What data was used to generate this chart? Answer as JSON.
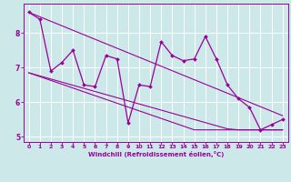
{
  "x_hours": [
    0,
    1,
    2,
    3,
    4,
    5,
    6,
    7,
    8,
    9,
    10,
    11,
    12,
    13,
    14,
    15,
    16,
    17,
    18,
    19,
    20,
    21,
    22,
    23
  ],
  "y_main": [
    8.6,
    8.4,
    6.9,
    7.15,
    7.5,
    6.5,
    6.45,
    7.35,
    7.25,
    5.4,
    6.5,
    6.45,
    7.75,
    7.35,
    7.2,
    7.25,
    7.9,
    7.25,
    6.5,
    6.1,
    5.85,
    5.2,
    5.35,
    5.5
  ],
  "y_trend_top": [
    8.6,
    8.47,
    8.34,
    8.21,
    8.08,
    7.95,
    7.82,
    7.69,
    7.56,
    7.43,
    7.3,
    7.17,
    7.04,
    6.91,
    6.78,
    6.65,
    6.52,
    6.39,
    6.26,
    6.13,
    6.0,
    5.87,
    5.74,
    5.61
  ],
  "y_trend_mid1": [
    6.85,
    6.74,
    6.63,
    6.52,
    6.41,
    6.3,
    6.19,
    6.08,
    5.97,
    5.86,
    5.75,
    5.64,
    5.53,
    5.42,
    5.31,
    5.2,
    5.2,
    5.2,
    5.2,
    5.2,
    5.2,
    5.2,
    5.2,
    5.2
  ],
  "y_trend_mid2": [
    6.85,
    6.76,
    6.67,
    6.58,
    6.49,
    6.4,
    6.31,
    6.22,
    6.13,
    6.04,
    5.95,
    5.86,
    5.77,
    5.68,
    5.59,
    5.5,
    5.41,
    5.32,
    5.23,
    5.2,
    5.2,
    5.2,
    5.2,
    5.2
  ],
  "line_color": "#990099",
  "background_color": "#cce8e8",
  "xlabel": "Windchill (Refroidissement éolien,°C)",
  "xlim": [
    -0.5,
    23.5
  ],
  "ylim": [
    4.85,
    8.85
  ],
  "yticks": [
    5,
    6,
    7,
    8
  ],
  "xticks": [
    0,
    1,
    2,
    3,
    4,
    5,
    6,
    7,
    8,
    9,
    10,
    11,
    12,
    13,
    14,
    15,
    16,
    17,
    18,
    19,
    20,
    21,
    22,
    23
  ]
}
